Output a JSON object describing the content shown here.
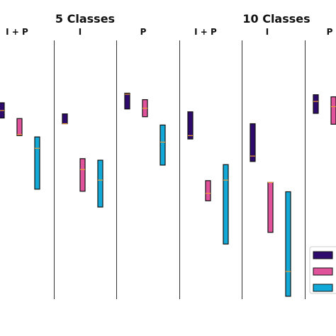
{
  "chart_data": {
    "type": "range-bar",
    "groups": [
      {
        "title": "5 Classes"
      },
      {
        "title": "10 Classes"
      }
    ],
    "panels": [
      {
        "group": 0,
        "label": "I + P"
      },
      {
        "group": 0,
        "label": "I"
      },
      {
        "group": 0,
        "label": "P"
      },
      {
        "group": 1,
        "label": "I + P"
      },
      {
        "group": 1,
        "label": "I"
      },
      {
        "group": 1,
        "label": "P"
      }
    ],
    "series_colors": [
      "#2d0a6b",
      "#e0529a",
      "#12a9d8"
    ],
    "median_color": "#f0a030",
    "ylim": [
      0,
      100
    ],
    "boxes": [
      {
        "panel": 0,
        "series": 0,
        "low": 70.0,
        "high": 75.9,
        "median": 72.9
      },
      {
        "panel": 0,
        "series": 1,
        "low": 63.2,
        "high": 69.8,
        "median": 63.6
      },
      {
        "panel": 0,
        "series": 2,
        "low": 42.5,
        "high": 62.7,
        "median": 58.3
      },
      {
        "panel": 1,
        "series": 0,
        "low": 67.8,
        "high": 71.6,
        "median": 67.8
      },
      {
        "panel": 1,
        "series": 1,
        "low": 41.7,
        "high": 54.3,
        "median": 50.1
      },
      {
        "panel": 1,
        "series": 2,
        "low": 35.6,
        "high": 53.7,
        "median": 46.0
      },
      {
        "panel": 2,
        "series": 0,
        "low": 73.5,
        "high": 79.6,
        "median": 79.2
      },
      {
        "panel": 2,
        "series": 1,
        "low": 70.5,
        "high": 77.1,
        "median": 73.8
      },
      {
        "panel": 2,
        "series": 2,
        "low": 51.8,
        "high": 67.3,
        "median": 60.7
      },
      {
        "panel": 3,
        "series": 0,
        "low": 61.9,
        "high": 72.4,
        "median": 63.2
      },
      {
        "panel": 3,
        "series": 1,
        "low": 38.0,
        "high": 45.8,
        "median": 40.9
      },
      {
        "panel": 3,
        "series": 2,
        "low": 21.3,
        "high": 52.0,
        "median": 46.0
      },
      {
        "panel": 4,
        "series": 0,
        "low": 53.2,
        "high": 67.8,
        "median": 55.3
      },
      {
        "panel": 4,
        "series": 1,
        "low": 25.8,
        "high": 45.1,
        "median": 45.1
      },
      {
        "panel": 4,
        "series": 2,
        "low": 1.1,
        "high": 41.5,
        "median": 10.7
      },
      {
        "panel": 5,
        "series": 0,
        "low": 71.8,
        "high": 79.0,
        "median": 76.4
      },
      {
        "panel": 5,
        "series": 1,
        "low": 67.6,
        "high": 78.2,
        "median": 74.4
      }
    ],
    "legend": {
      "position": "bottom-right",
      "labels": [
        "",
        "",
        ""
      ]
    }
  }
}
